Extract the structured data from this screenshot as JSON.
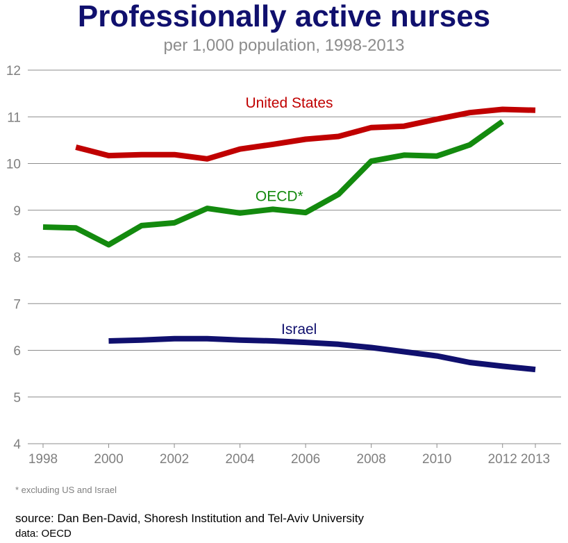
{
  "title": "Professionally active nurses",
  "subtitle": "per 1,000 population, 1998-2013",
  "footnote": "* excluding US and Israel",
  "source": "source: Dan Ben-David, Shoresh Institution and Tel-Aviv University",
  "data_source": "data: OECD",
  "chart_data": {
    "type": "line",
    "xlim": [
      1998,
      2013
    ],
    "ylim": [
      4,
      12
    ],
    "y_ticks": [
      4,
      5,
      6,
      7,
      8,
      9,
      10,
      11,
      12
    ],
    "x_ticks": [
      1998,
      2000,
      2002,
      2004,
      2006,
      2008,
      2010,
      2012,
      2013
    ],
    "grid": true,
    "series": [
      {
        "name": "United States",
        "color": "#c00000",
        "x": [
          1999,
          2000,
          2001,
          2002,
          2003,
          2004,
          2005,
          2006,
          2007,
          2008,
          2009,
          2010,
          2011,
          2012,
          2013
        ],
        "values": [
          10.35,
          10.17,
          10.19,
          10.19,
          10.1,
          10.31,
          10.41,
          10.52,
          10.58,
          10.77,
          10.8,
          10.95,
          11.09,
          11.16,
          11.14
        ]
      },
      {
        "name": "OECD*",
        "color": "#138a0e",
        "x": [
          1998,
          1999,
          2000,
          2001,
          2002,
          2003,
          2004,
          2005,
          2006,
          2007,
          2008,
          2009,
          2010,
          2011,
          2012
        ],
        "values": [
          8.64,
          8.62,
          8.26,
          8.67,
          8.73,
          9.04,
          8.94,
          9.02,
          8.95,
          9.34,
          10.05,
          10.18,
          10.16,
          10.4,
          10.9
        ]
      },
      {
        "name": "Israel",
        "color": "#10106e",
        "x": [
          2000,
          2001,
          2002,
          2003,
          2004,
          2005,
          2006,
          2007,
          2008,
          2009,
          2010,
          2011,
          2012,
          2013
        ],
        "values": [
          6.2,
          6.22,
          6.25,
          6.25,
          6.22,
          6.2,
          6.17,
          6.13,
          6.06,
          5.97,
          5.88,
          5.74,
          5.66,
          5.59
        ]
      }
    ]
  }
}
